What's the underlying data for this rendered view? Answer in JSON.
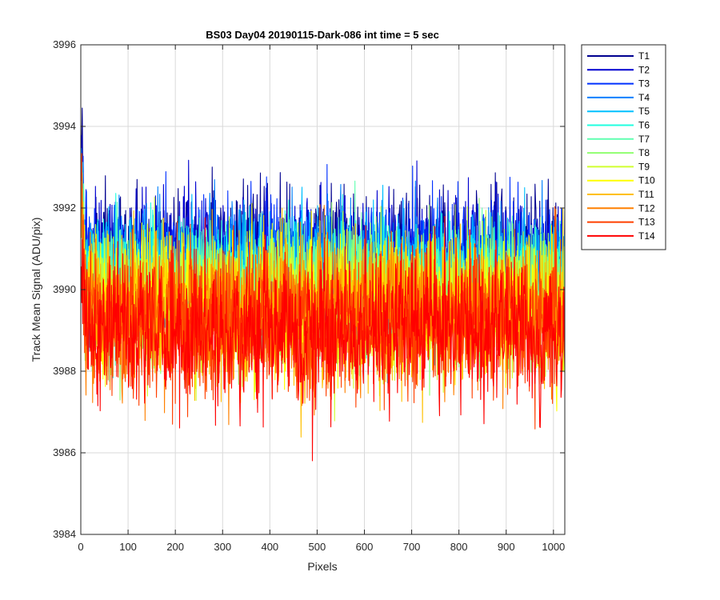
{
  "chart_data": {
    "type": "line",
    "title": "BS03 Day04 20190115-Dark-086 int time = 5 sec",
    "xlabel": "Pixels",
    "ylabel": "Track Mean Signal (ADU/pix)",
    "xlim": [
      0,
      1024
    ],
    "ylim": [
      3984,
      3996
    ],
    "xticks": [
      "0",
      "100",
      "200",
      "300",
      "400",
      "500",
      "600",
      "700",
      "800",
      "900",
      "1000"
    ],
    "yticks": [
      "3984",
      "3986",
      "3988",
      "3990",
      "3992",
      "3994",
      "3996"
    ],
    "grid": true,
    "legend_position": "outside-right",
    "num_points": 1024,
    "series": [
      {
        "name": "T1",
        "color": "#00008f",
        "mean": 3990.95,
        "spread": 0.75
      },
      {
        "name": "T2",
        "color": "#0000d0",
        "mean": 3990.8,
        "spread": 0.75
      },
      {
        "name": "T3",
        "color": "#0030ff",
        "mean": 3990.65,
        "spread": 0.75
      },
      {
        "name": "T4",
        "color": "#0080ff",
        "mean": 3990.5,
        "spread": 0.75
      },
      {
        "name": "T5",
        "color": "#00c0ff",
        "mean": 3990.35,
        "spread": 0.75
      },
      {
        "name": "T6",
        "color": "#20ffe0",
        "mean": 3990.2,
        "spread": 0.75
      },
      {
        "name": "T7",
        "color": "#60ffb0",
        "mean": 3990.05,
        "spread": 0.75
      },
      {
        "name": "T8",
        "color": "#90ff70",
        "mean": 3989.9,
        "spread": 0.8
      },
      {
        "name": "T9",
        "color": "#d0ff30",
        "mean": 3989.75,
        "spread": 0.8
      },
      {
        "name": "T10",
        "color": "#ffff00",
        "mean": 3989.6,
        "spread": 0.8
      },
      {
        "name": "T11",
        "color": "#ffc000",
        "mean": 3989.45,
        "spread": 0.85
      },
      {
        "name": "T12",
        "color": "#ff8000",
        "mean": 3989.3,
        "spread": 0.85
      },
      {
        "name": "T13",
        "color": "#ff4000",
        "mean": 3989.15,
        "spread": 0.9
      },
      {
        "name": "T14",
        "color": "#ff0000",
        "mean": 3989.0,
        "spread": 0.9
      }
    ]
  }
}
